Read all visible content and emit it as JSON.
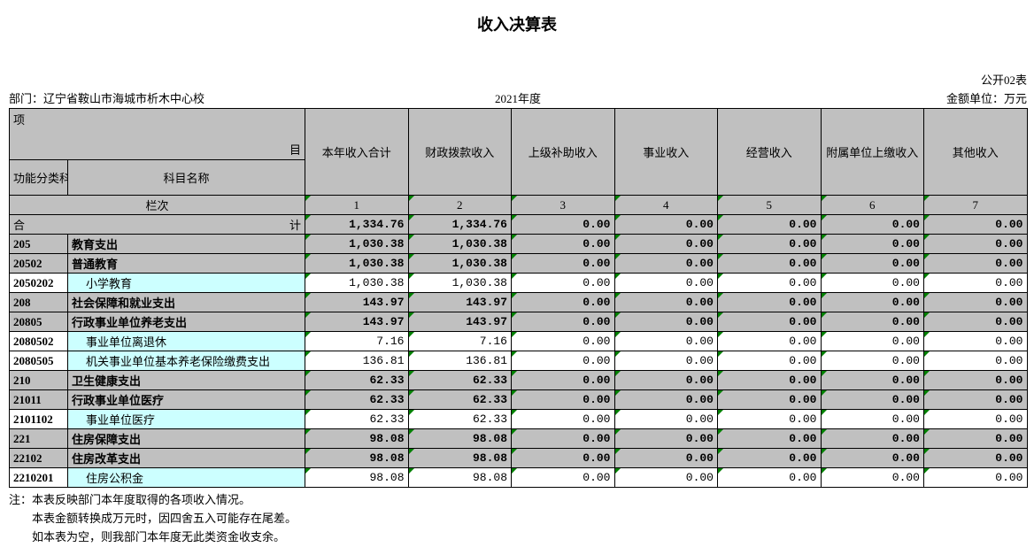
{
  "title": "收入决算表",
  "formNo": "公开02表",
  "dept": "部门：辽宁省鞍山市海城市析木中心校",
  "year": "2021年度",
  "unit": "金额单位：万元",
  "header": {
    "projectItem": {
      "left": "项",
      "right": "目"
    },
    "codeLabel": "功能分类科目编码",
    "nameLabel": "科目名称",
    "cols": [
      "本年收入合计",
      "财政拨款收入",
      "上级补助收入",
      "事业收入",
      "经营收入",
      "附属单位上缴收入",
      "其他收入"
    ],
    "colIndexLabel": "栏次",
    "colIndices": [
      "1",
      "2",
      "3",
      "4",
      "5",
      "6",
      "7"
    ],
    "totalLeft": "合",
    "totalRight": "计"
  },
  "totals": [
    "1,334.76",
    "1,334.76",
    "0.00",
    "0.00",
    "0.00",
    "0.00",
    "0.00"
  ],
  "rows": [
    {
      "code": "205",
      "name": "教育支出",
      "style": "grey",
      "vals": [
        "1,030.38",
        "1,030.38",
        "0.00",
        "0.00",
        "0.00",
        "0.00",
        "0.00"
      ]
    },
    {
      "code": "20502",
      "name": "普通教育",
      "style": "grey",
      "vals": [
        "1,030.38",
        "1,030.38",
        "0.00",
        "0.00",
        "0.00",
        "0.00",
        "0.00"
      ]
    },
    {
      "code": "2050202",
      "name": "小学教育",
      "style": "cyan",
      "indent": true,
      "vals": [
        "1,030.38",
        "1,030.38",
        "0.00",
        "0.00",
        "0.00",
        "0.00",
        "0.00"
      ]
    },
    {
      "code": "208",
      "name": "社会保障和就业支出",
      "style": "grey",
      "vals": [
        "143.97",
        "143.97",
        "0.00",
        "0.00",
        "0.00",
        "0.00",
        "0.00"
      ]
    },
    {
      "code": "20805",
      "name": "行政事业单位养老支出",
      "style": "grey",
      "vals": [
        "143.97",
        "143.97",
        "0.00",
        "0.00",
        "0.00",
        "0.00",
        "0.00"
      ]
    },
    {
      "code": "2080502",
      "name": "事业单位离退休",
      "style": "cyan",
      "indent": true,
      "vals": [
        "7.16",
        "7.16",
        "0.00",
        "0.00",
        "0.00",
        "0.00",
        "0.00"
      ]
    },
    {
      "code": "2080505",
      "name": "机关事业单位基本养老保险缴费支出",
      "style": "cyan",
      "indent": true,
      "vals": [
        "136.81",
        "136.81",
        "0.00",
        "0.00",
        "0.00",
        "0.00",
        "0.00"
      ]
    },
    {
      "code": "210",
      "name": "卫生健康支出",
      "style": "grey",
      "vals": [
        "62.33",
        "62.33",
        "0.00",
        "0.00",
        "0.00",
        "0.00",
        "0.00"
      ]
    },
    {
      "code": "21011",
      "name": "行政事业单位医疗",
      "style": "grey",
      "vals": [
        "62.33",
        "62.33",
        "0.00",
        "0.00",
        "0.00",
        "0.00",
        "0.00"
      ]
    },
    {
      "code": "2101102",
      "name": "事业单位医疗",
      "style": "cyan",
      "indent": true,
      "vals": [
        "62.33",
        "62.33",
        "0.00",
        "0.00",
        "0.00",
        "0.00",
        "0.00"
      ]
    },
    {
      "code": "221",
      "name": "住房保障支出",
      "style": "grey",
      "vals": [
        "98.08",
        "98.08",
        "0.00",
        "0.00",
        "0.00",
        "0.00",
        "0.00"
      ]
    },
    {
      "code": "22102",
      "name": "住房改革支出",
      "style": "grey",
      "vals": [
        "98.08",
        "98.08",
        "0.00",
        "0.00",
        "0.00",
        "0.00",
        "0.00"
      ]
    },
    {
      "code": "2210201",
      "name": "住房公积金",
      "style": "cyan",
      "indent": true,
      "vals": [
        "98.08",
        "98.08",
        "0.00",
        "0.00",
        "0.00",
        "0.00",
        "0.00"
      ]
    }
  ],
  "notes": [
    "注：本表反映部门本年度取得的各项收入情况。",
    "　　本表金额转换成万元时，因四舍五入可能存在尾差。",
    "　　如本表为空，则我部门本年度无此类资金收支余。"
  ],
  "colors": {
    "grey": "#c0c0c0",
    "cyan": "#ccffff",
    "triangle": "#008000",
    "border": "#000000"
  }
}
